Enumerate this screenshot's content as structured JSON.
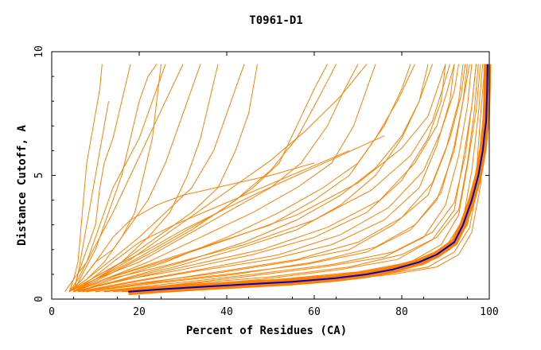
{
  "chart_data": {
    "type": "line",
    "title": "T0961-D1",
    "xlabel": "Percent of Residues (CA)",
    "ylabel": "Distance Cutoff, A",
    "xlim": [
      0,
      100
    ],
    "ylim": [
      0,
      10
    ],
    "xticks": [
      0,
      20,
      40,
      60,
      80,
      100
    ],
    "yticks": [
      0,
      5,
      10
    ],
    "colors": {
      "models": "#ff8000",
      "highlight": "#0000cc",
      "axis": "#000000"
    },
    "grid": false,
    "legend": "none",
    "series": [
      {
        "x": [
          4,
          5,
          6,
          6.5,
          7,
          7.5,
          8,
          9,
          10,
          11,
          11.5
        ],
        "y": [
          0.3,
          0.8,
          1.5,
          2.5,
          3.5,
          4.5,
          5.5,
          6.5,
          7.5,
          8.5,
          9.5
        ]
      },
      {
        "x": [
          5,
          6,
          7,
          8,
          9,
          10,
          11,
          12,
          13
        ],
        "y": [
          0.3,
          1.0,
          2.0,
          3.0,
          4.0,
          5.0,
          6.0,
          7.0,
          8.0
        ]
      },
      {
        "x": [
          5,
          6,
          8,
          10,
          11,
          12,
          14,
          16,
          18
        ],
        "y": [
          0.3,
          1.0,
          2.0,
          3.0,
          4.5,
          5.5,
          6.5,
          8.0,
          9.5
        ]
      },
      {
        "x": [
          5,
          7,
          10,
          12,
          14,
          16,
          18,
          20,
          22,
          24
        ],
        "y": [
          0.3,
          1.0,
          2.0,
          3.0,
          4.0,
          5.0,
          6.5,
          8.0,
          9.0,
          9.5
        ]
      },
      {
        "x": [
          4,
          6,
          8,
          10,
          12,
          14,
          17,
          20,
          23,
          26
        ],
        "y": [
          0.3,
          0.8,
          1.5,
          2.5,
          3.5,
          4.5,
          5.5,
          6.5,
          8.0,
          9.5
        ]
      },
      {
        "x": [
          3,
          5,
          8,
          11,
          14,
          18,
          22,
          26,
          30
        ],
        "y": [
          0.3,
          0.8,
          1.5,
          2.5,
          3.5,
          5.0,
          6.5,
          8.0,
          9.5
        ]
      },
      {
        "x": [
          4,
          7,
          10,
          14,
          18,
          22,
          26,
          30,
          34
        ],
        "y": [
          0.3,
          0.8,
          1.5,
          2.0,
          3.0,
          4.0,
          5.5,
          7.5,
          9.5
        ]
      },
      {
        "x": [
          4,
          8,
          13,
          20,
          26,
          32,
          37,
          41,
          44
        ],
        "y": [
          0.3,
          0.8,
          1.5,
          2.5,
          3.5,
          4.5,
          6.0,
          8.0,
          9.5
        ]
      },
      {
        "x": [
          4,
          9,
          16,
          24,
          32,
          38,
          42,
          45,
          47
        ],
        "y": [
          0.3,
          0.8,
          1.5,
          2.5,
          3.5,
          4.5,
          6.0,
          7.5,
          9.5
        ]
      },
      {
        "x": [
          5,
          10,
          18,
          28,
          38,
          46,
          52,
          56,
          60,
          63
        ],
        "y": [
          0.3,
          0.8,
          1.5,
          2.5,
          3.5,
          4.5,
          5.5,
          7.0,
          8.5,
          9.5
        ]
      },
      {
        "x": [
          4,
          10,
          20,
          30,
          40,
          50,
          57,
          63,
          67,
          70
        ],
        "y": [
          0.3,
          0.8,
          1.5,
          2.5,
          3.5,
          4.5,
          5.5,
          7.0,
          8.5,
          9.5
        ]
      },
      {
        "x": [
          5,
          12,
          22,
          34,
          46,
          56,
          64,
          69,
          72,
          74
        ],
        "y": [
          0.3,
          0.8,
          1.5,
          2.5,
          3.5,
          4.5,
          5.5,
          7.0,
          8.5,
          9.5
        ]
      },
      {
        "x": [
          5,
          12,
          24,
          38,
          50,
          60,
          68,
          74,
          79,
          83
        ],
        "y": [
          0.3,
          0.8,
          1.5,
          2.3,
          3.0,
          4.0,
          5.0,
          6.5,
          8.0,
          9.5
        ]
      },
      {
        "x": [
          5,
          14,
          28,
          42,
          56,
          66,
          74,
          80,
          84,
          86
        ],
        "y": [
          0.3,
          0.7,
          1.3,
          2.0,
          2.8,
          3.8,
          5.0,
          6.5,
          8.0,
          9.5
        ]
      },
      {
        "x": [
          5,
          14,
          30,
          46,
          60,
          72,
          80,
          86,
          89,
          90
        ],
        "y": [
          0.3,
          0.7,
          1.2,
          1.8,
          2.5,
          3.5,
          4.8,
          6.5,
          8.0,
          9.5
        ]
      },
      {
        "x": [
          6,
          16,
          32,
          50,
          64,
          76,
          84,
          88,
          91,
          92
        ],
        "y": [
          0.3,
          0.6,
          1.1,
          1.6,
          2.2,
          3.2,
          4.5,
          6.2,
          8.0,
          9.5
        ]
      },
      {
        "x": [
          6,
          18,
          36,
          54,
          68,
          78,
          86,
          90,
          93,
          94
        ],
        "y": [
          0.3,
          0.6,
          1.0,
          1.5,
          2.0,
          3.0,
          4.2,
          6.0,
          8.0,
          9.5
        ]
      },
      {
        "x": [
          8,
          20,
          40,
          58,
          72,
          82,
          88,
          92,
          94,
          95
        ],
        "y": [
          0.3,
          0.6,
          1.0,
          1.4,
          1.9,
          2.8,
          4.0,
          6.0,
          8.0,
          9.5
        ]
      },
      {
        "x": [
          10,
          24,
          44,
          62,
          76,
          85,
          90,
          93,
          95,
          96
        ],
        "y": [
          0.3,
          0.5,
          0.9,
          1.3,
          1.7,
          2.5,
          3.8,
          5.8,
          7.8,
          9.5
        ]
      },
      {
        "x": [
          12,
          28,
          48,
          66,
          79,
          87,
          92,
          94,
          96,
          97
        ],
        "y": [
          0.3,
          0.5,
          0.8,
          1.2,
          1.6,
          2.4,
          3.6,
          5.6,
          7.8,
          9.5
        ]
      },
      {
        "x": [
          14,
          32,
          52,
          70,
          82,
          89,
          93,
          95,
          97,
          98
        ],
        "y": [
          0.3,
          0.5,
          0.8,
          1.1,
          1.5,
          2.2,
          3.4,
          5.4,
          7.6,
          9.5
        ]
      },
      {
        "x": [
          16,
          36,
          56,
          73,
          84,
          90,
          94,
          96,
          97.5,
          98.5
        ],
        "y": [
          0.3,
          0.5,
          0.8,
          1.1,
          1.5,
          2.1,
          3.2,
          5.2,
          7.5,
          9.5
        ]
      },
      {
        "x": [
          17,
          38,
          58,
          75,
          85,
          91,
          95,
          97,
          98,
          99
        ],
        "y": [
          0.3,
          0.5,
          0.7,
          1.0,
          1.4,
          2.0,
          3.0,
          5.0,
          7.4,
          9.5
        ]
      },
      {
        "x": [
          18,
          40,
          60,
          76,
          86,
          92,
          95.5,
          97.5,
          98.5,
          99.5
        ],
        "y": [
          0.3,
          0.5,
          0.7,
          1.0,
          1.3,
          1.9,
          2.9,
          4.8,
          7.2,
          9.5
        ]
      },
      {
        "x": [
          20,
          42,
          62,
          78,
          88,
          93,
          96,
          98,
          99,
          100
        ],
        "y": [
          0.3,
          0.5,
          0.7,
          1.0,
          1.3,
          1.8,
          2.7,
          4.6,
          7.0,
          9.5
        ]
      },
      {
        "x": [
          12,
          30,
          50,
          68,
          80,
          88,
          93,
          95,
          96.5,
          97.5
        ],
        "y": [
          0.3,
          0.6,
          0.9,
          1.3,
          1.8,
          2.5,
          3.6,
          5.5,
          7.5,
          9.5
        ]
      },
      {
        "x": [
          10,
          26,
          46,
          64,
          78,
          87,
          92,
          94.5,
          96,
          97
        ],
        "y": [
          0.3,
          0.6,
          1.0,
          1.4,
          1.9,
          2.7,
          3.9,
          5.8,
          7.8,
          9.5
        ]
      },
      {
        "x": [
          8,
          22,
          42,
          60,
          74,
          83,
          89,
          92,
          94,
          95.5
        ],
        "y": [
          0.3,
          0.6,
          1.0,
          1.5,
          2.1,
          3.0,
          4.3,
          6.2,
          8.0,
          9.5
        ]
      },
      {
        "x": [
          7,
          20,
          38,
          56,
          70,
          80,
          87,
          91,
          93.5,
          94.5
        ],
        "y": [
          0.3,
          0.6,
          1.1,
          1.6,
          2.3,
          3.3,
          4.7,
          6.5,
          8.2,
          9.5
        ]
      },
      {
        "x": [
          6,
          18,
          34,
          52,
          66,
          77,
          85,
          89,
          92,
          93
        ],
        "y": [
          0.3,
          0.7,
          1.2,
          1.8,
          2.6,
          3.7,
          5.2,
          6.8,
          8.4,
          9.5
        ]
      },
      {
        "x": [
          5,
          15,
          30,
          48,
          63,
          75,
          83,
          88,
          90.5,
          92
        ],
        "y": [
          0.3,
          0.7,
          1.3,
          2.0,
          2.9,
          4.0,
          5.5,
          7.0,
          8.5,
          9.5
        ]
      },
      {
        "x": [
          5,
          13,
          27,
          44,
          60,
          73,
          82,
          87,
          89.5,
          91
        ],
        "y": [
          0.3,
          0.8,
          1.4,
          2.2,
          3.2,
          4.4,
          5.8,
          7.2,
          8.6,
          9.5
        ]
      },
      {
        "x": [
          5,
          12,
          25,
          40,
          56,
          70,
          80,
          86,
          88.5,
          90
        ],
        "y": [
          0.3,
          0.8,
          1.5,
          2.4,
          3.4,
          4.7,
          6.1,
          7.4,
          8.7,
          9.5
        ]
      },
      {
        "x": [
          6,
          14,
          26,
          40,
          52,
          62,
          70,
          76,
          80,
          82
        ],
        "y": [
          0.3,
          0.8,
          1.5,
          2.5,
          3.5,
          4.5,
          5.5,
          7.0,
          8.5,
          9.5
        ]
      },
      {
        "x": [
          5,
          10,
          16,
          22,
          27,
          31,
          34,
          36,
          38
        ],
        "y": [
          0.3,
          0.8,
          1.5,
          2.5,
          3.5,
          5.0,
          6.5,
          8.0,
          9.5
        ]
      },
      {
        "x": [
          4,
          8,
          12,
          16,
          19,
          21,
          23,
          24,
          25
        ],
        "y": [
          0.3,
          0.8,
          1.5,
          2.5,
          3.5,
          5.0,
          6.5,
          8.0,
          9.5
        ]
      },
      {
        "x": [
          4,
          7,
          10,
          14,
          18,
          24,
          30,
          40,
          50,
          60
        ],
        "y": [
          0.3,
          0.8,
          1.5,
          2.5,
          3.2,
          3.8,
          4.2,
          4.6,
          5.0,
          5.5
        ]
      },
      {
        "x": [
          5,
          9,
          14,
          20,
          28,
          36,
          44,
          52,
          60,
          68
        ],
        "y": [
          0.3,
          0.8,
          1.5,
          2.3,
          3.0,
          3.6,
          4.2,
          4.8,
          5.4,
          6.0
        ]
      },
      {
        "x": [
          4,
          8,
          14,
          22,
          30,
          38,
          46,
          56,
          66,
          76
        ],
        "y": [
          0.3,
          0.7,
          1.3,
          2.0,
          2.8,
          3.5,
          4.2,
          5.0,
          5.8,
          6.6
        ]
      },
      {
        "x": [
          5,
          10,
          18,
          26,
          34,
          42,
          50,
          58,
          66,
          72
        ],
        "y": [
          0.3,
          0.8,
          1.6,
          2.6,
          3.6,
          4.6,
          5.6,
          6.8,
          8.2,
          9.5
        ]
      },
      {
        "x": [
          5,
          12,
          22,
          32,
          42,
          50,
          56,
          60,
          63,
          65
        ],
        "y": [
          0.3,
          0.9,
          1.8,
          2.8,
          4.0,
          5.2,
          6.5,
          7.8,
          8.8,
          9.5
        ]
      },
      {
        "x": [
          6,
          16,
          30,
          44,
          56,
          66,
          74,
          80,
          84,
          87
        ],
        "y": [
          0.3,
          0.8,
          1.5,
          2.3,
          3.2,
          4.2,
          5.3,
          6.6,
          8.0,
          9.5
        ]
      }
    ],
    "highlight": {
      "x": [
        17.5,
        25,
        35,
        45,
        55,
        65,
        72,
        78,
        84,
        88,
        92,
        94,
        96,
        97.5,
        98.5,
        99,
        99.3,
        99.5,
        99.6
      ],
      "y": [
        0.3,
        0.4,
        0.5,
        0.6,
        0.7,
        0.85,
        1.0,
        1.2,
        1.5,
        1.8,
        2.3,
        3.0,
        4.0,
        5.0,
        6.0,
        6.8,
        7.2,
        8.5,
        9.5
      ]
    }
  }
}
